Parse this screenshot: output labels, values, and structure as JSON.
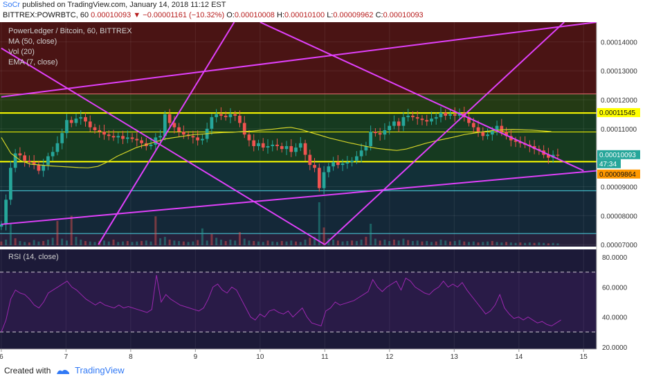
{
  "header": {
    "author": "SoCr",
    "published": " published on TradingView.com, January 14, 2018 11:12 EST",
    "symbol": "BITTREX:POWRBTC, 60",
    "last": "0.00010093",
    "arrow": "▼",
    "change": "−0.00001161 (−10.32%)",
    "o_label": "O:",
    "o": "0.00010008",
    "h_label": "H:",
    "h": "0.00010100",
    "l_label": "L:",
    "l": "0.00009962",
    "c_label": "C:",
    "c": "0.00010093"
  },
  "footer": {
    "created": "Created with",
    "brand": "TradingView"
  },
  "colors": {
    "up": "#26a69a",
    "down": "#ef5350",
    "ma": "#d4d428",
    "rsi": "#9c27b0",
    "level": "#ffff00",
    "trend": "#e040fb",
    "bg": "#1b2a3a"
  },
  "chart_data": [
    {
      "type": "candlestick",
      "title": "PowerLedger / Bitcoin, 60, BITTREX",
      "indicators": [
        "MA (50, close)",
        "Vol (20)",
        "EMA (7, close)"
      ],
      "x_ticks": [
        "6",
        "7",
        "8",
        "9",
        "10",
        "11",
        "12",
        "13",
        "14",
        "15"
      ],
      "y_ticks": [
        "0.00014000",
        "0.00013000",
        "0.00012000",
        "0.00011000",
        "0.00009000",
        "0.00008000",
        "0.00007000"
      ],
      "ylim": [
        6.93e-05,
        0.0001468
      ],
      "xlim": [
        5.98,
        15.2
      ],
      "price_labels": [
        {
          "text": "0.00011545",
          "value": 0.00011545,
          "bg": "#ffff00"
        },
        {
          "text": "0.00010093",
          "value": 0.00010093,
          "bg": "#26a69a"
        },
        {
          "text": "47:34",
          "value": 9.86e-05,
          "bg": "#26a69a"
        },
        {
          "text": "0.00009864",
          "value": 9.864e-05,
          "bg": "#ff9800"
        }
      ],
      "horizontal_levels": [
        {
          "value": 0.00011545,
          "color": "#ffff00",
          "width": 2
        },
        {
          "value": 0.0001089,
          "color": "#ffff00",
          "width": 1
        },
        {
          "value": 9.864e-05,
          "color": "#ffff00",
          "width": 2
        },
        {
          "value": 0.000122,
          "color": "#e57373",
          "width": 1
        },
        {
          "value": 8.86e-05,
          "color": "#4dd0e1",
          "width": 1
        },
        {
          "value": 7.38e-05,
          "color": "#4dd0e1",
          "width": 1
        }
      ],
      "zones": [
        {
          "from": 0.0001468,
          "to": 0.000122,
          "color": "#4a1414"
        },
        {
          "from": 0.000122,
          "to": 0.0001154,
          "color": "#243a14"
        },
        {
          "from": 0.0001154,
          "to": 9.86e-05,
          "color": "#163a20"
        },
        {
          "from": 9.86e-05,
          "to": 8.86e-05,
          "color": "#123038"
        },
        {
          "from": 8.86e-05,
          "to": 7.38e-05,
          "color": "#142838"
        },
        {
          "from": 7.38e-05,
          "to": 6.93e-05,
          "color": "#26203a"
        }
      ],
      "trend_lines": [
        [
          [
            6.0,
            0.000121
          ],
          [
            15.2,
            0.0001468
          ]
        ],
        [
          [
            6.0,
            7.7e-05
          ],
          [
            15.2,
            9.55e-05
          ]
        ],
        [
          [
            6.0,
            0.0001378
          ],
          [
            11.0,
            7e-05
          ]
        ],
        [
          [
            10.0,
            0.0001468
          ],
          [
            15.0,
            9.55e-05
          ]
        ],
        [
          [
            7.5,
            7e-05
          ],
          [
            9.6,
            0.0001468
          ]
        ],
        [
          [
            11.0,
            7e-05
          ],
          [
            14.7,
            0.0001468
          ]
        ]
      ],
      "close": [
        7.7e-05,
        8.55e-05,
        9.65e-05,
        0.0001015,
        0.0001008,
        9.9e-05,
        9.85e-05,
        9.75e-05,
        9.55e-05,
        9.75e-05,
        0.0001005,
        0.000102,
        0.000105,
        0.0001085,
        0.000113,
        0.000112,
        0.0001135,
        0.000114,
        0.0001125,
        0.0001105,
        0.0001095,
        0.000109,
        0.000108,
        0.0001075,
        0.000107,
        0.0001075,
        0.0001065,
        0.000107,
        0.0001065,
        0.000106,
        0.000105,
        0.000104,
        0.0001045,
        0.000107,
        0.0001075,
        0.000115,
        0.000112,
        0.0001105,
        0.000109,
        0.000108,
        0.0001075,
        0.000107,
        0.000106,
        0.0001065,
        0.00011,
        0.000114,
        0.000115,
        0.0001145,
        0.000114,
        0.000115,
        0.0001145,
        0.000112,
        0.000108,
        0.000106,
        0.000104,
        0.000105,
        0.0001035,
        0.000104,
        0.0001045,
        0.000104,
        0.000103,
        0.000104,
        0.000102,
        0.0001035,
        0.000105,
        0.000101,
        9.75e-05,
        9.65e-05,
        8.95e-05,
        9.5e-05,
        9.7e-05,
        9.85e-05,
        9.75e-05,
        9.8e-05,
        9.85e-05,
        9.9e-05,
        0.0001005,
        0.0001025,
        0.000104,
        0.000109,
        0.0001085,
        0.000108,
        0.0001095,
        0.000111,
        0.0001125,
        0.000111,
        0.000114,
        0.0001145,
        0.000114,
        0.0001135,
        0.000113,
        0.0001125,
        0.0001135,
        0.000114,
        0.0001155,
        0.0001145,
        0.000115,
        0.0001145,
        0.0001155,
        0.000114,
        0.000112,
        0.0001105,
        0.000109,
        0.0001075,
        0.000108,
        0.0001095,
        0.000111,
        0.000109,
        0.0001075,
        0.000106,
        0.0001055,
        0.000105,
        0.0001045,
        0.000104,
        0.000103,
        0.0001025,
        0.000101,
        0.0001,
        0.000101,
        0.0001009
      ],
      "ma50": [
        0.000107,
        0.0001015,
        9.9e-05,
        9.78e-05,
        9.75e-05,
        9.72e-05,
        9.7e-05,
        9.68e-05,
        9.66e-05,
        9.65e-05,
        9.7e-05,
        9.85e-05,
        0.0001005,
        0.000102,
        0.0001035,
        0.0001045,
        0.0001055,
        0.0001065,
        0.000107,
        0.0001075,
        0.000108,
        0.0001082,
        0.0001085,
        0.0001087,
        0.0001088,
        0.000109,
        0.0001092,
        0.0001095,
        0.0001098,
        0.0001102,
        0.0001105,
        0.0001098,
        0.0001088,
        0.0001078,
        0.0001068,
        0.000106,
        0.0001052,
        0.0001045,
        0.0001038,
        0.0001032,
        0.0001028,
        0.0001025,
        0.000103,
        0.000104,
        0.000105,
        0.0001058,
        0.0001065,
        0.0001072,
        0.000108,
        0.0001085,
        0.000109,
        0.0001094,
        0.0001096,
        0.0001097,
        0.0001096,
        0.0001095,
        0.0001093,
        0.000109
      ],
      "volume": [
        0.8,
        1.2,
        4.6,
        1.5,
        0.9,
        0.7,
        0.6,
        1.1,
        0.8,
        0.9,
        1.2,
        1.6,
        5.2,
        1.4,
        1.0,
        6.3,
        1.8,
        1.2,
        0.9,
        0.8,
        0.7,
        0.9,
        1.0,
        0.8,
        1.2,
        0.7,
        0.8,
        0.9,
        0.7,
        0.8,
        0.9,
        1.0,
        0.8,
        6.2,
        1.5,
        1.8,
        1.2,
        1.0,
        0.9,
        0.8,
        0.7,
        0.8,
        1.1,
        3.6,
        1.0,
        2.4,
        1.6,
        1.2,
        0.9,
        1.2,
        1.0,
        2.8,
        1.4,
        1.0,
        0.9,
        0.8,
        0.7,
        1.0,
        0.8,
        0.7,
        0.9,
        0.8,
        1.0,
        0.8,
        0.7,
        1.2,
        1.6,
        1.8,
        9.2,
        3.8,
        1.5,
        1.2,
        1.0,
        0.8,
        0.9,
        1.0,
        0.9,
        1.2,
        1.8,
        4.6,
        1.4,
        1.0,
        1.2,
        0.9,
        1.2,
        1.0,
        1.4,
        1.1,
        0.9,
        1.0,
        0.8,
        0.9,
        0.7,
        0.8,
        1.2,
        1.0,
        0.8,
        0.9,
        1.1,
        0.8,
        0.7,
        0.8,
        0.6,
        0.7,
        0.8,
        0.9,
        0.7,
        0.6,
        0.7,
        0.6,
        0.5,
        0.6,
        0.5,
        0.6,
        0.5,
        0.6,
        0.5,
        0.4,
        0.5,
        0.4
      ]
    },
    {
      "type": "line",
      "title": "RSI (14, close)",
      "y_ticks": [
        "80.0000",
        "60.0000",
        "40.0000",
        "20.0000"
      ],
      "ylim": [
        18.5,
        85.2
      ],
      "bands": [
        70,
        30
      ],
      "series": [
        {
          "values": [
            30,
            38,
            52,
            58,
            56,
            55,
            52,
            48,
            46,
            50,
            56,
            58,
            60,
            62,
            64,
            60,
            58,
            55,
            52,
            50,
            48,
            50,
            48,
            47,
            46,
            48,
            46,
            47,
            46,
            45,
            44,
            43,
            45,
            68,
            50,
            55,
            52,
            50,
            48,
            47,
            46,
            45,
            44,
            46,
            52,
            60,
            62,
            58,
            56,
            60,
            58,
            52,
            46,
            40,
            38,
            42,
            40,
            44,
            45,
            43,
            42,
            44,
            40,
            43,
            46,
            40,
            36,
            35,
            34,
            44,
            46,
            50,
            48,
            49,
            50,
            51,
            53,
            55,
            57,
            65,
            60,
            57,
            60,
            62,
            64,
            58,
            66,
            64,
            60,
            58,
            56,
            55,
            58,
            60,
            64,
            60,
            62,
            60,
            63,
            58,
            54,
            50,
            46,
            42,
            44,
            48,
            55,
            46,
            42,
            39,
            40,
            38,
            40,
            38,
            36,
            37,
            35,
            34,
            36,
            38
          ]
        }
      ]
    }
  ]
}
